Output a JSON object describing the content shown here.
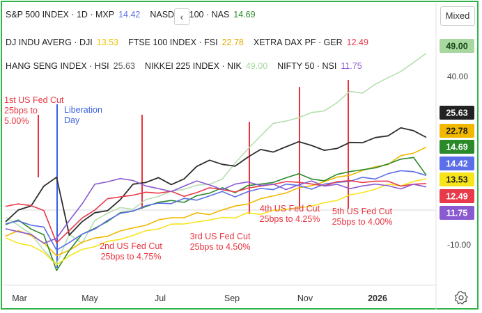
{
  "legend": {
    "row1": [
      {
        "label": "S&P 500 INDEX · 1D · MXP",
        "value": "14.42",
        "color": "#5b6fe8"
      },
      {
        "label": "NASDAQ 100 · NAS",
        "value": "14.69",
        "color": "#2a8a2a"
      }
    ],
    "row2": [
      {
        "label": "DJ INDU AVERG · DJI",
        "value": "13.53",
        "color": "#f2c200"
      },
      {
        "label": "FTSE 100 INDEX · FSI",
        "value": "22.78",
        "color": "#e8a800"
      },
      {
        "label": "XETRA DAX PF · GER",
        "value": "12.49",
        "color": "#e83a4a"
      }
    ],
    "row3": [
      {
        "label": "HANG SENG INDEX · HSI",
        "value": "25.63",
        "color": "#555555"
      },
      {
        "label": "NIKKEI 225 INDEX · NIK",
        "value": "49.00",
        "color": "#a8d8a0"
      },
      {
        "label": "NIFTY 50 · NSI",
        "value": "11.75",
        "color": "#8a5ad0"
      }
    ]
  },
  "controls": {
    "back_label": "‹",
    "scale_label": "Mixed",
    "settings_icon": "gear-icon"
  },
  "chart_data": {
    "type": "line",
    "x_ticks": [
      "Mar",
      "May",
      "Jul",
      "Sep",
      "Nov",
      "2026"
    ],
    "y_ticks": [
      "40.00",
      "-10.00"
    ],
    "ylim": [
      -15,
      55
    ],
    "badges": [
      {
        "value": "49.00",
        "color": "#a8d8a0",
        "text_color": "#1a4a1a"
      },
      {
        "value": "25.63",
        "color": "#222222",
        "text_color": "#ffffff"
      },
      {
        "value": "22.78",
        "color": "#f2b800",
        "text_color": "#1a1a1a"
      },
      {
        "value": "14.69",
        "color": "#2a8a2a",
        "text_color": "#ffffff"
      },
      {
        "value": "14.42",
        "color": "#5b6fe8",
        "text_color": "#ffffff"
      },
      {
        "value": "13.53",
        "color": "#f7e41a",
        "text_color": "#1a1a1a"
      },
      {
        "value": "12.49",
        "color": "#e83a4a",
        "text_color": "#ffffff"
      },
      {
        "value": "11.75",
        "color": "#8a5ad0",
        "text_color": "#ffffff"
      }
    ],
    "annotations": [
      {
        "lines": [
          "1st US Fed Cut",
          "25bps to",
          "5.00%"
        ],
        "color": "#e8333f"
      },
      {
        "lines": [
          "Liberation",
          "Day"
        ],
        "color": "#3a5fe0"
      },
      {
        "lines": [
          "2nd US Fed Cut",
          "25bps to 4.75%"
        ],
        "color": "#e8333f"
      },
      {
        "lines": [
          "3rd US Fed Cut",
          "25bps to 4.50%"
        ],
        "color": "#e8333f"
      },
      {
        "lines": [
          "4th US Fed Cut",
          "25bps to 4.25%"
        ],
        "color": "#e8333f"
      },
      {
        "lines": [
          "5th US Fed Cut",
          "25bps to 4.00%"
        ],
        "color": "#e8333f"
      }
    ],
    "series": [
      {
        "name": "NIKKEI 225 INDEX · NIK",
        "color": "#b6dfb0",
        "width": 1.6,
        "values": [
          3,
          1,
          -2,
          -6,
          -10,
          -2,
          -4,
          2,
          4,
          6,
          5,
          8,
          9,
          10,
          11,
          12,
          12,
          14,
          18,
          22,
          26,
          29,
          30,
          31,
          32,
          33,
          35,
          38,
          38,
          40,
          42,
          44,
          46,
          49
        ]
      },
      {
        "name": "HANG SENG INDEX · HSI",
        "color": "#2d2d2d",
        "width": 1.8,
        "values": [
          2,
          5,
          6,
          12,
          14,
          -2,
          2,
          4,
          5,
          8,
          12,
          13,
          14,
          12,
          14,
          17,
          19,
          18,
          17,
          20,
          22,
          21,
          23,
          24,
          23,
          22,
          22,
          24,
          24,
          25,
          26,
          28,
          27,
          25.63
        ]
      },
      {
        "name": "FTSE 100 INDEX · FSI",
        "color": "#f2b800",
        "width": 1.6,
        "values": [
          -2,
          -1,
          -2,
          -4,
          -8,
          -6,
          -4,
          -3,
          -2,
          -1,
          0,
          1,
          2,
          3,
          3,
          4,
          4,
          5,
          6,
          7,
          8,
          9,
          10,
          11,
          12,
          13,
          14,
          15,
          16,
          17,
          18,
          20,
          21,
          22.78
        ]
      },
      {
        "name": "NASDAQ 100 · NAS",
        "color": "#2a8a2a",
        "width": 1.6,
        "values": [
          1,
          2,
          0,
          -2,
          -12,
          -6,
          -2,
          0,
          2,
          4,
          5,
          6,
          7,
          8,
          7,
          9,
          10,
          11,
          10,
          12,
          12,
          13,
          14,
          15,
          14,
          13,
          15,
          16,
          16,
          17,
          18,
          19,
          20,
          14.69
        ]
      },
      {
        "name": "S&P 500 INDEX · 1D · MXP",
        "color": "#5b6fe8",
        "width": 1.6,
        "values": [
          1,
          2,
          1,
          0,
          -6,
          -4,
          -2,
          0,
          2,
          4,
          5,
          6,
          7,
          7,
          8,
          8,
          9,
          10,
          9,
          10,
          11,
          11,
          12,
          12,
          11,
          12,
          13,
          13,
          14,
          14,
          15,
          16,
          16,
          14.42
        ]
      },
      {
        "name": "DJ INDU AVERG · DJI",
        "color": "#f7e41a",
        "width": 1.6,
        "values": [
          -3,
          -4,
          -5,
          -7,
          -10,
          -8,
          -6,
          -5,
          -4,
          -3,
          -2,
          -1,
          0,
          1,
          1,
          2,
          2,
          3,
          3,
          4,
          4,
          5,
          5,
          6,
          6,
          7,
          8,
          9,
          10,
          11,
          12,
          12,
          13,
          13.53
        ]
      },
      {
        "name": "XETRA DAX PF · GER",
        "color": "#e83a4a",
        "width": 1.6,
        "values": [
          6,
          7,
          6,
          5,
          -4,
          -1,
          3,
          5,
          8,
          9,
          9,
          10,
          10,
          10,
          9,
          10,
          11,
          11,
          10,
          11,
          12,
          12,
          13,
          13,
          12,
          12,
          13,
          13,
          13,
          13,
          13,
          12,
          12,
          12.49
        ]
      },
      {
        "name": "NIFTY 50 · NSI",
        "color": "#8a5ad0",
        "width": 1.6,
        "values": [
          0,
          -1,
          -2,
          -4,
          -3,
          2,
          7,
          12,
          13,
          14,
          13,
          12,
          11,
          10,
          12,
          13,
          12,
          11,
          12,
          13,
          12,
          12,
          11,
          12,
          13,
          12,
          12,
          11,
          12,
          12,
          12,
          11,
          12,
          11.75
        ]
      }
    ]
  }
}
